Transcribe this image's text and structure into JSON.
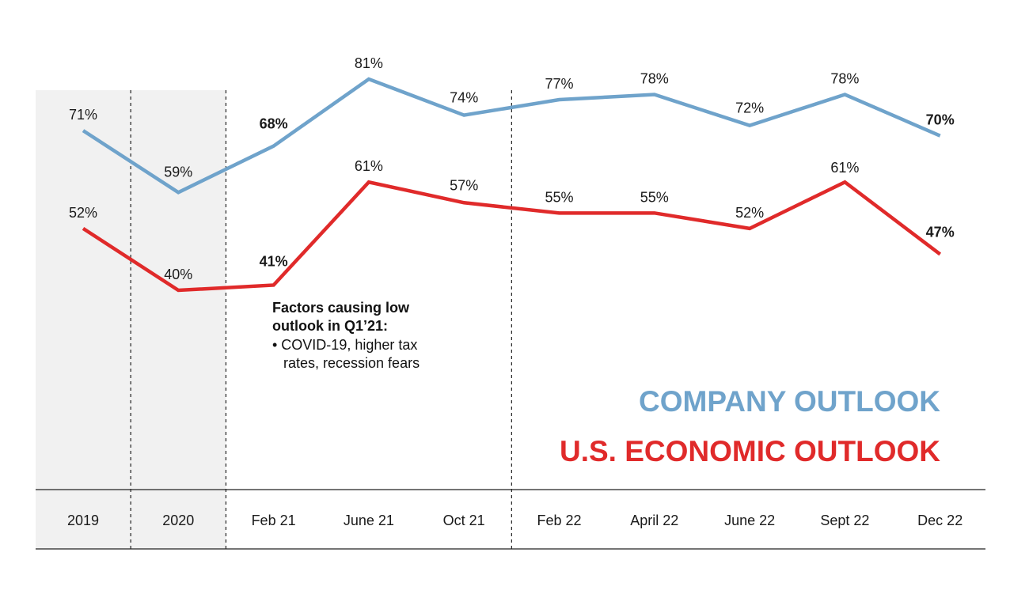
{
  "chart_data": {
    "type": "line",
    "categories": [
      "2019",
      "2020",
      "Feb 21",
      "June 21",
      "Oct 21",
      "Feb 22",
      "April 22",
      "June 22",
      "Sept 22",
      "Dec 22"
    ],
    "shaded_categories": [
      "2019",
      "2020"
    ],
    "dividers_after": [
      "2019",
      "2020",
      "Oct 21"
    ],
    "ylim": [
      30,
      90
    ],
    "grid": false,
    "legend_position": "bottom-right",
    "series": [
      {
        "name": "COMPANY OUTLOOK",
        "color": "#6fa3cb",
        "values": [
          71,
          59,
          68,
          81,
          74,
          77,
          78,
          72,
          78,
          70
        ],
        "labels": [
          "71%",
          "59%",
          "68%",
          "81%",
          "74%",
          "77%",
          "78%",
          "72%",
          "78%",
          "70%"
        ],
        "bold_indices": [
          2,
          9
        ]
      },
      {
        "name": "U.S. ECONOMIC OUTLOOK",
        "color": "#e02a2a",
        "values": [
          52,
          40,
          41,
          61,
          57,
          55,
          55,
          52,
          61,
          47
        ],
        "labels": [
          "52%",
          "40%",
          "41%",
          "61%",
          "57%",
          "55%",
          "55%",
          "52%",
          "61%",
          "47%"
        ],
        "bold_indices": [
          2,
          9
        ]
      }
    ],
    "annotation": {
      "title_lines": [
        "Factors causing low",
        "outlook in Q1’21:"
      ],
      "bullet_lines": [
        "• COVID-19, higher tax",
        "rates, recession fears"
      ]
    }
  }
}
